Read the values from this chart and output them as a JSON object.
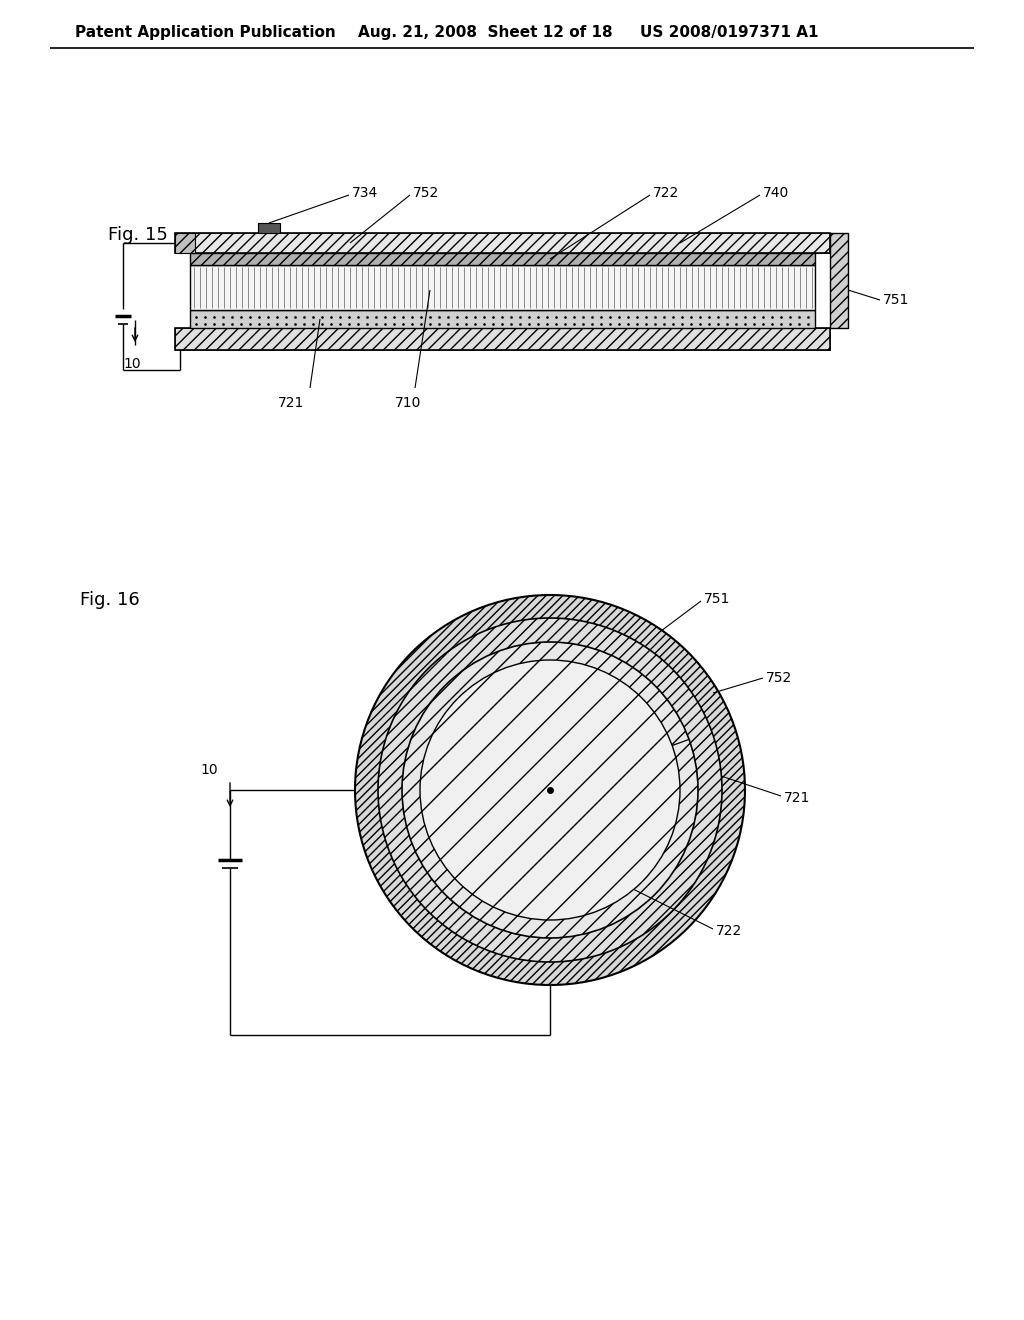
{
  "bg_color": "#ffffff",
  "header_text_left": "Patent Application Publication",
  "header_text_mid": "Aug. 21, 2008  Sheet 12 of 18",
  "header_text_right": "US 2008/0197371 A1",
  "font_size_header": 11,
  "font_size_fig_label": 13,
  "font_size_ref": 10,
  "line_color": "#000000"
}
